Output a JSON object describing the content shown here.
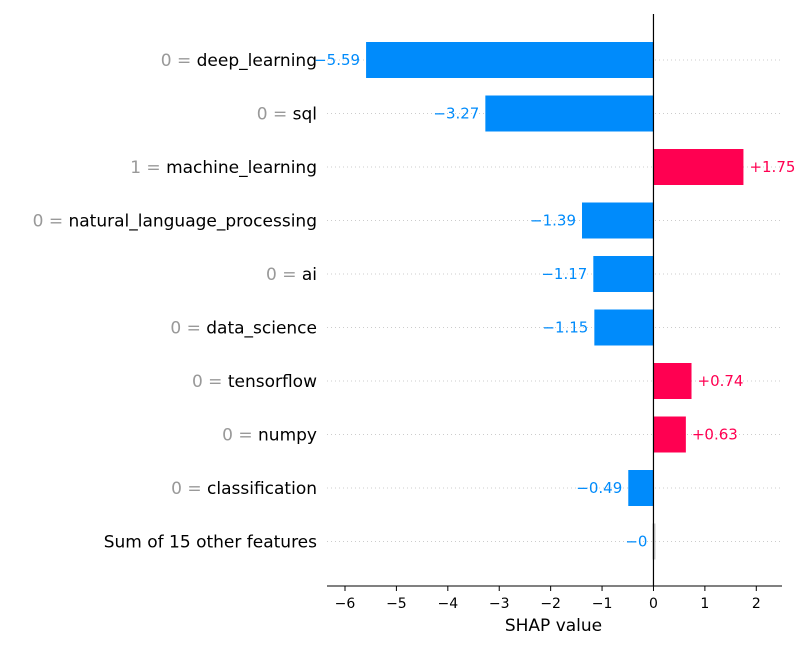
{
  "colors": {
    "negative": "#008bfb",
    "positive": "#ff0051",
    "neutral": "#c8c8c8",
    "feature_value_text": "#999999",
    "guide": "#cccccc"
  },
  "chart_data": {
    "type": "bar",
    "orientation": "horizontal",
    "xlabel": "SHAP value",
    "xlim": [
      -6.35,
      2.5
    ],
    "xticks": [
      "−6",
      "−5",
      "−4",
      "−3",
      "−2",
      "−1",
      "0",
      "1",
      "2"
    ],
    "xtick_values": [
      -6,
      -5,
      -4,
      -3,
      -2,
      -1,
      0,
      1,
      2
    ],
    "grid": false,
    "rows": [
      {
        "feature_value": "0 =",
        "feature": "deep_learning",
        "value": -5.59,
        "label": "−5.59"
      },
      {
        "feature_value": "0 =",
        "feature": "sql",
        "value": -3.27,
        "label": "−3.27"
      },
      {
        "feature_value": "1 =",
        "feature": "machine_learning",
        "value": 1.75,
        "label": "+1.75"
      },
      {
        "feature_value": "0 =",
        "feature": "natural_language_processing",
        "value": -1.39,
        "label": "−1.39"
      },
      {
        "feature_value": "0 =",
        "feature": "ai",
        "value": -1.17,
        "label": "−1.17"
      },
      {
        "feature_value": "0 =",
        "feature": "data_science",
        "value": -1.15,
        "label": "−1.15"
      },
      {
        "feature_value": "0 =",
        "feature": "tensorflow",
        "value": 0.74,
        "label": "+0.74"
      },
      {
        "feature_value": "0 =",
        "feature": "numpy",
        "value": 0.63,
        "label": "+0.63"
      },
      {
        "feature_value": "0 =",
        "feature": "classification",
        "value": -0.49,
        "label": "−0.49"
      },
      {
        "feature_value": "",
        "feature": "Sum of 15 other features",
        "value": 0,
        "label": "−0"
      }
    ]
  }
}
